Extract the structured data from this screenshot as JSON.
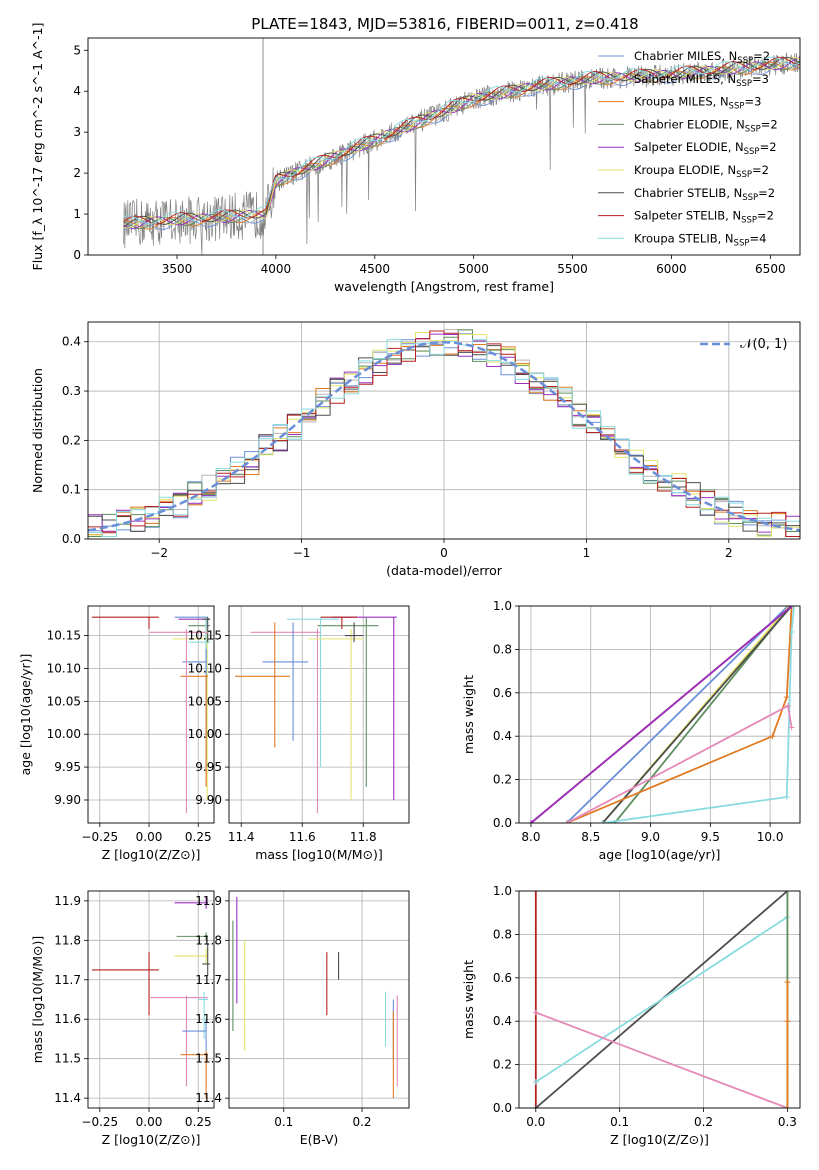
{
  "figure": {
    "title": "PLATE=1843, MJD=53816, FIBERID=0011, z=0.418"
  },
  "model_colors": [
    "#6a8fd8",
    "#b5b5b5",
    "#e07b24",
    "#5f8f5f",
    "#9b30c0",
    "#e3e36a",
    "#4d4d4d",
    "#b52020",
    "#8adbe0"
  ],
  "models": [
    {
      "name": "Chabrier MILES",
      "color": "#6a8fd8",
      "nssp": "2"
    },
    {
      "name": "Salpeter MILES",
      "color": "#b5b5b5",
      "nssp": "3"
    },
    {
      "name": "Kroupa MILES",
      "color": "#e07b24",
      "nssp": "3"
    },
    {
      "name": "Chabrier ELODIE",
      "color": "#5f8f5f",
      "nssp": "2"
    },
    {
      "name": "Salpeter ELODIE",
      "color": "#9b30c0",
      "nssp": "2"
    },
    {
      "name": "Kroupa ELODIE",
      "color": "#e3e36a",
      "nssp": "2"
    },
    {
      "name": "Chabrier STELIB",
      "color": "#4d4d4d",
      "nssp": "2"
    },
    {
      "name": "Salpeter STELIB",
      "color": "#b52020",
      "nssp": "2"
    },
    {
      "name": "Kroupa STELIB",
      "color": "#8adbe0",
      "nssp": "4"
    }
  ],
  "chart_data": [
    {
      "id": "spectrum",
      "type": "line",
      "xlabel": "wavelength [Angstrom, rest frame]",
      "ylabel": "Flux [f_λ 10^-17 erg cm^-2 s^-1 A^-1]",
      "xlim": [
        3050,
        6650
      ],
      "ylim": [
        0,
        5.3
      ],
      "xticks": [
        3500,
        4000,
        4500,
        5000,
        5500,
        6000,
        6500
      ],
      "yticks": [
        0,
        1,
        2,
        3,
        4,
        5
      ],
      "legend_position": "upper right",
      "data_color": "#808080",
      "data_wavelength_range": [
        3230,
        6650
      ],
      "continuum_points": [
        [
          3230,
          0.75
        ],
        [
          3500,
          0.85
        ],
        [
          3700,
          0.9
        ],
        [
          3950,
          1.0
        ],
        [
          4000,
          1.8
        ],
        [
          4200,
          2.2
        ],
        [
          4500,
          2.8
        ],
        [
          4800,
          3.4
        ],
        [
          5000,
          3.8
        ],
        [
          5300,
          4.1
        ],
        [
          5600,
          4.3
        ],
        [
          6000,
          4.4
        ],
        [
          6650,
          4.7
        ]
      ],
      "model_range": [
        3230,
        6650
      ]
    },
    {
      "id": "residuals",
      "type": "histogram",
      "xlabel": "(data-model)/error",
      "ylabel": "Normed distribution",
      "xlim": [
        -2.5,
        2.5
      ],
      "ylim": [
        0,
        0.44
      ],
      "xticks": [
        -2,
        -1,
        0,
        1,
        2
      ],
      "yticks": [
        0.0,
        0.1,
        0.2,
        0.3,
        0.4
      ],
      "grid": true,
      "gaussian_label": "𝒩(0, 1)",
      "gaussian_color": "#6a8fd8",
      "legend_position": "upper right"
    },
    {
      "id": "age_vs_Z",
      "type": "errorbar",
      "xlabel": "Z [log10(Z/Z⊙)]",
      "ylabel": "age  [log10(age/yr)]",
      "xlim": [
        -0.31,
        0.33
      ],
      "ylim": [
        9.865,
        10.195
      ],
      "xticks": [
        -0.25,
        0.0,
        0.25
      ],
      "yticks": [
        9.9,
        9.95,
        10.0,
        10.05,
        10.1,
        10.15
      ],
      "points": [
        {
          "model": 7,
          "x": 0.0,
          "y": 10.178,
          "xlo": -0.29,
          "xhi": 0.05,
          "ylo": 10.16,
          "yhi": 10.178
        },
        {
          "model": 0,
          "x": 0.29,
          "y": 10.178,
          "xlo": 0.13,
          "xhi": 0.3,
          "ylo": 9.95,
          "yhi": 10.178
        },
        {
          "model": 4,
          "x": 0.29,
          "y": 10.175,
          "xlo": 0.15,
          "xhi": 0.31,
          "ylo": 9.95,
          "yhi": 10.178
        },
        {
          "model": 3,
          "x": 0.29,
          "y": 10.165,
          "xlo": 0.2,
          "xhi": 0.31,
          "ylo": 9.99,
          "yhi": 10.178
        },
        {
          "model": 1,
          "x": 0.29,
          "y": 10.155,
          "xlo": 0.18,
          "xhi": 0.3,
          "ylo": 9.98,
          "yhi": 10.17
        },
        {
          "model": 5,
          "x": 0.295,
          "y": 10.145,
          "xlo": 0.12,
          "xhi": 0.3,
          "ylo": 9.9,
          "yhi": 10.16
        },
        {
          "model": 8,
          "x": 0.29,
          "y": 10.14,
          "xlo": 0.2,
          "xhi": 0.31,
          "ylo": 9.95,
          "yhi": 10.178
        },
        {
          "model": 0,
          "x": 0.29,
          "y": 10.11,
          "xlo": 0.17,
          "xhi": 0.29,
          "ylo": 10.0,
          "yhi": 10.13
        },
        {
          "model": 2,
          "x": 0.29,
          "y": 10.088,
          "xlo": 0.16,
          "xhi": 0.3,
          "ylo": 9.92,
          "yhi": 10.09
        },
        {
          "model": 6,
          "x": 0.298,
          "y": 10.175,
          "xlo": 0.27,
          "xhi": 0.31,
          "ylo": 10.14,
          "yhi": 10.178
        },
        {
          "model": "pink",
          "x": 0.19,
          "y": 10.155,
          "xlo": 0.0,
          "xhi": 0.3,
          "ylo": 9.88,
          "yhi": 10.16
        }
      ]
    },
    {
      "id": "age_vs_mass",
      "type": "errorbar",
      "xlabel": "mass [log10(M/M⊙)]",
      "ylabel": "",
      "xlim": [
        11.36,
        11.95
      ],
      "ylim": [
        9.865,
        10.195
      ],
      "xticks": [
        11.4,
        11.6,
        11.8
      ],
      "yticks": [
        9.9,
        9.95,
        10.0,
        10.05,
        10.1,
        10.15
      ],
      "points": [
        {
          "model": 4,
          "x": 11.9,
          "y": 10.178,
          "xlo": 11.7,
          "xhi": 11.91,
          "ylo": 9.9,
          "yhi": 10.178
        },
        {
          "model": 3,
          "x": 11.81,
          "y": 10.165,
          "xlo": 11.65,
          "xhi": 11.85,
          "ylo": 9.92,
          "yhi": 10.178
        },
        {
          "model": 7,
          "x": 11.73,
          "y": 10.178,
          "xlo": 11.66,
          "xhi": 11.78,
          "ylo": 10.16,
          "yhi": 10.178
        },
        {
          "model": 8,
          "x": 11.66,
          "y": 10.175,
          "xlo": 11.55,
          "xhi": 11.72,
          "ylo": 9.95,
          "yhi": 10.178
        },
        {
          "model": "pink",
          "x": 11.65,
          "y": 10.155,
          "xlo": 11.43,
          "xhi": 11.66,
          "ylo": 9.88,
          "yhi": 10.16
        },
        {
          "model": 5,
          "x": 11.76,
          "y": 10.145,
          "xlo": 11.62,
          "xhi": 11.8,
          "ylo": 9.9,
          "yhi": 10.16
        },
        {
          "model": 6,
          "x": 11.77,
          "y": 10.15,
          "xlo": 11.74,
          "xhi": 11.8,
          "ylo": 10.14,
          "yhi": 10.17
        },
        {
          "model": 0,
          "x": 11.57,
          "y": 10.11,
          "xlo": 11.47,
          "xhi": 11.62,
          "ylo": 9.99,
          "yhi": 10.17
        },
        {
          "model": 2,
          "x": 11.51,
          "y": 10.088,
          "xlo": 11.38,
          "xhi": 11.56,
          "ylo": 9.98,
          "yhi": 10.17
        }
      ]
    },
    {
      "id": "mass_weight_vs_age",
      "type": "line",
      "xlabel": "age  [log10(age/yr)]",
      "ylabel": "mass weight",
      "xlim": [
        7.9,
        10.25
      ],
      "ylim": [
        0,
        1
      ],
      "xticks": [
        8.0,
        8.5,
        9.0,
        9.5,
        10.0
      ],
      "yticks": [
        0.0,
        0.2,
        0.4,
        0.6,
        0.8,
        1.0
      ],
      "grid": true,
      "series": [
        {
          "model": 7,
          "x": [
            8.0,
            10.18
          ],
          "y": [
            0.0,
            1.0
          ]
        },
        {
          "model": 0,
          "x": [
            8.3,
            10.15
          ],
          "y": [
            0.0,
            1.0
          ]
        },
        {
          "model": 5,
          "x": [
            8.6,
            10.16
          ],
          "y": [
            0.0,
            1.0
          ]
        },
        {
          "model": 3,
          "x": [
            8.7,
            10.17
          ],
          "y": [
            0.0,
            1.0
          ]
        },
        {
          "model": 6,
          "x": [
            8.6,
            10.18
          ],
          "y": [
            0.0,
            1.0
          ]
        },
        {
          "model": 2,
          "x": [
            8.3,
            10.02,
            10.14,
            10.18
          ],
          "y": [
            0.0,
            0.4,
            0.58,
            1.0
          ]
        },
        {
          "model": 8,
          "x": [
            8.6,
            10.14,
            10.18,
            10.2
          ],
          "y": [
            0.0,
            0.12,
            0.88,
            1.0
          ]
        },
        {
          "model": "pink",
          "x": [
            8.3,
            10.15,
            10.18
          ],
          "y": [
            0.0,
            0.54,
            0.44
          ]
        },
        {
          "model": 4,
          "x": [
            8.0,
            10.18
          ],
          "y": [
            0.0,
            1.0
          ]
        }
      ]
    },
    {
      "id": "mass_vs_Z",
      "type": "errorbar",
      "xlabel": "Z [log10(Z/Z⊙)]",
      "ylabel": "mass [log10(M/M⊙)]",
      "xlim": [
        -0.31,
        0.33
      ],
      "ylim": [
        11.375,
        11.925
      ],
      "xticks": [
        -0.25,
        0.0,
        0.25
      ],
      "yticks": [
        11.4,
        11.5,
        11.6,
        11.7,
        11.8,
        11.9
      ],
      "points": [
        {
          "model": 4,
          "x": 0.29,
          "y": 11.895,
          "xlo": 0.13,
          "xhi": 0.3,
          "ylo": 11.88,
          "yhi": 11.91
        },
        {
          "model": 3,
          "x": 0.29,
          "y": 11.81,
          "xlo": 0.14,
          "xhi": 0.3,
          "ylo": 11.8,
          "yhi": 11.82
        },
        {
          "model": 7,
          "x": 0.0,
          "y": 11.725,
          "xlo": -0.29,
          "xhi": 0.05,
          "ylo": 11.61,
          "yhi": 11.77
        },
        {
          "model": 5,
          "x": 0.29,
          "y": 11.76,
          "xlo": 0.13,
          "xhi": 0.3,
          "ylo": 11.74,
          "yhi": 11.78
        },
        {
          "model": 6,
          "x": 0.298,
          "y": 11.74,
          "xlo": 0.27,
          "xhi": 0.31,
          "ylo": 11.71,
          "yhi": 11.79
        },
        {
          "model": "pink",
          "x": 0.19,
          "y": 11.655,
          "xlo": 0.0,
          "xhi": 0.3,
          "ylo": 11.43,
          "yhi": 11.66
        },
        {
          "model": 8,
          "x": 0.28,
          "y": 11.65,
          "xlo": 0.25,
          "xhi": 0.3,
          "ylo": 11.55,
          "yhi": 11.67
        },
        {
          "model": 0,
          "x": 0.29,
          "y": 11.57,
          "xlo": 0.17,
          "xhi": 0.29,
          "ylo": 11.52,
          "yhi": 11.6
        },
        {
          "model": 2,
          "x": 0.29,
          "y": 11.51,
          "xlo": 0.16,
          "xhi": 0.3,
          "ylo": 11.4,
          "yhi": 11.52
        }
      ]
    },
    {
      "id": "mass_vs_ebv",
      "type": "errorbar",
      "xlabel": "E(B-V)",
      "ylabel": "",
      "xlim": [
        0.03,
        0.26
      ],
      "ylim": [
        11.375,
        11.925
      ],
      "xticks": [
        0.1,
        0.2
      ],
      "yticks": [
        11.4,
        11.5,
        11.6,
        11.7,
        11.8,
        11.9
      ],
      "points": [
        {
          "model": 4,
          "x": 0.04,
          "y": 11.9,
          "xlo": 0.04,
          "xhi": 0.04,
          "ylo": 11.64,
          "yhi": 11.91
        },
        {
          "model": 3,
          "x": 0.035,
          "y": 11.85,
          "xlo": 0.035,
          "xhi": 0.035,
          "ylo": 11.57,
          "yhi": 11.85
        },
        {
          "model": 5,
          "x": 0.05,
          "y": 11.8,
          "xlo": 0.05,
          "xhi": 0.05,
          "ylo": 11.52,
          "yhi": 11.8
        },
        {
          "model": 7,
          "x": 0.155,
          "y": 11.76,
          "xlo": 0.155,
          "xhi": 0.155,
          "ylo": 11.61,
          "yhi": 11.77
        },
        {
          "model": 6,
          "x": 0.17,
          "y": 11.77,
          "xlo": 0.17,
          "xhi": 0.17,
          "ylo": 11.7,
          "yhi": 11.77
        },
        {
          "model": 8,
          "x": 0.23,
          "y": 11.6,
          "xlo": 0.23,
          "xhi": 0.23,
          "ylo": 11.53,
          "yhi": 11.67
        },
        {
          "model": 0,
          "x": 0.24,
          "y": 11.57,
          "xlo": 0.24,
          "xhi": 0.24,
          "ylo": 11.5,
          "yhi": 11.65
        },
        {
          "model": 2,
          "x": 0.24,
          "y": 11.51,
          "xlo": 0.24,
          "xhi": 0.24,
          "ylo": 11.4,
          "yhi": 11.62
        },
        {
          "model": "pink",
          "x": 0.245,
          "y": 11.55,
          "xlo": 0.245,
          "xhi": 0.245,
          "ylo": 11.43,
          "yhi": 11.66
        }
      ]
    },
    {
      "id": "mass_weight_vs_Z",
      "type": "line",
      "xlabel": "Z [log10(Z/Z⊙)]",
      "ylabel": "mass weight",
      "xlim": [
        -0.02,
        0.315
      ],
      "ylim": [
        0,
        1
      ],
      "xticks": [
        0.0,
        0.1,
        0.2,
        0.3
      ],
      "yticks": [
        0.0,
        0.2,
        0.4,
        0.6,
        0.8,
        1.0
      ],
      "grid": true,
      "series": [
        {
          "model": 7,
          "x": [
            0.0,
            0.0
          ],
          "y": [
            0.0,
            1.0
          ]
        },
        {
          "model": 6,
          "x": [
            0.0,
            0.3
          ],
          "y": [
            0.0,
            1.0
          ]
        },
        {
          "model": 8,
          "x": [
            0.0,
            0.3,
            0.3
          ],
          "y": [
            0.12,
            0.88,
            1.0
          ]
        },
        {
          "model": "pink",
          "x": [
            0.0,
            0.3
          ],
          "y": [
            0.44,
            0.0
          ]
        },
        {
          "model": 5,
          "x": [
            0.3,
            0.3
          ],
          "y": [
            0.0,
            1.0
          ]
        },
        {
          "model": 3,
          "x": [
            0.3,
            0.3
          ],
          "y": [
            0.0,
            1.0
          ]
        },
        {
          "model": 2,
          "x": [
            0.3,
            0.3,
            0.3
          ],
          "y": [
            0.0,
            0.4,
            0.58
          ]
        }
      ]
    }
  ]
}
